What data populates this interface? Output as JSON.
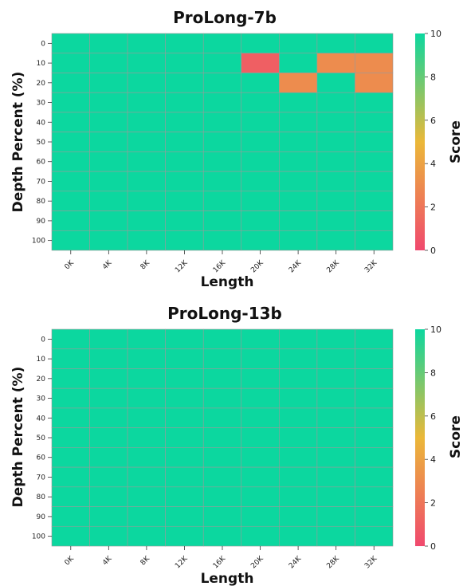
{
  "chart_data": [
    {
      "type": "heatmap",
      "title": "ProLong-7b",
      "xlabel": "Length",
      "ylabel": "Depth Percent (%)",
      "x_categories": [
        "0K",
        "4K",
        "8K",
        "12K",
        "16K",
        "20K",
        "24K",
        "28K",
        "32K"
      ],
      "y_categories": [
        "0",
        "10",
        "20",
        "30",
        "40",
        "50",
        "60",
        "70",
        "80",
        "90",
        "100"
      ],
      "values": [
        [
          10,
          10,
          10,
          10,
          10,
          10,
          10,
          10,
          10
        ],
        [
          10,
          10,
          10,
          10,
          10,
          1,
          10,
          3,
          3
        ],
        [
          10,
          10,
          10,
          10,
          10,
          10,
          3,
          10,
          3
        ],
        [
          10,
          10,
          10,
          10,
          10,
          10,
          10,
          10,
          10
        ],
        [
          10,
          10,
          10,
          10,
          10,
          10,
          10,
          10,
          10
        ],
        [
          10,
          10,
          10,
          10,
          10,
          10,
          10,
          10,
          10
        ],
        [
          10,
          10,
          10,
          10,
          10,
          10,
          10,
          10,
          10
        ],
        [
          10,
          10,
          10,
          10,
          10,
          10,
          10,
          10,
          10
        ],
        [
          10,
          10,
          10,
          10,
          10,
          10,
          10,
          10,
          10
        ],
        [
          10,
          10,
          10,
          10,
          10,
          10,
          10,
          10,
          10
        ],
        [
          10,
          10,
          10,
          10,
          10,
          10,
          10,
          10,
          10
        ]
      ],
      "colorbar": {
        "label": "Score",
        "range": [
          0,
          10
        ],
        "ticks": [
          "0",
          "2",
          "4",
          "6",
          "8",
          "10"
        ]
      }
    },
    {
      "type": "heatmap",
      "title": "ProLong-13b",
      "xlabel": "Length",
      "ylabel": "Depth Percent (%)",
      "x_categories": [
        "0K",
        "4K",
        "8K",
        "12K",
        "16K",
        "20K",
        "24K",
        "28K",
        "32K"
      ],
      "y_categories": [
        "0",
        "10",
        "20",
        "30",
        "40",
        "50",
        "60",
        "70",
        "80",
        "90",
        "100"
      ],
      "values": [
        [
          10,
          10,
          10,
          10,
          10,
          10,
          10,
          10,
          10
        ],
        [
          10,
          10,
          10,
          10,
          10,
          10,
          10,
          10,
          10
        ],
        [
          10,
          10,
          10,
          10,
          10,
          10,
          10,
          10,
          10
        ],
        [
          10,
          10,
          10,
          10,
          10,
          10,
          10,
          10,
          10
        ],
        [
          10,
          10,
          10,
          10,
          10,
          10,
          10,
          10,
          10
        ],
        [
          10,
          10,
          10,
          10,
          10,
          10,
          10,
          10,
          10
        ],
        [
          10,
          10,
          10,
          10,
          10,
          10,
          10,
          10,
          10
        ],
        [
          10,
          10,
          10,
          10,
          10,
          10,
          10,
          10,
          10
        ],
        [
          10,
          10,
          10,
          10,
          10,
          10,
          10,
          10,
          10
        ],
        [
          10,
          10,
          10,
          10,
          10,
          10,
          10,
          10,
          10
        ],
        [
          10,
          10,
          10,
          10,
          10,
          10,
          10,
          10,
          10
        ]
      ],
      "colorbar": {
        "label": "Score",
        "range": [
          0,
          10
        ],
        "ticks": [
          "0",
          "2",
          "4",
          "6",
          "8",
          "10"
        ]
      }
    }
  ],
  "colors": {
    "colormap": [
      "#F0496E",
      "#EBB839",
      "#0CD79F"
    ]
  }
}
